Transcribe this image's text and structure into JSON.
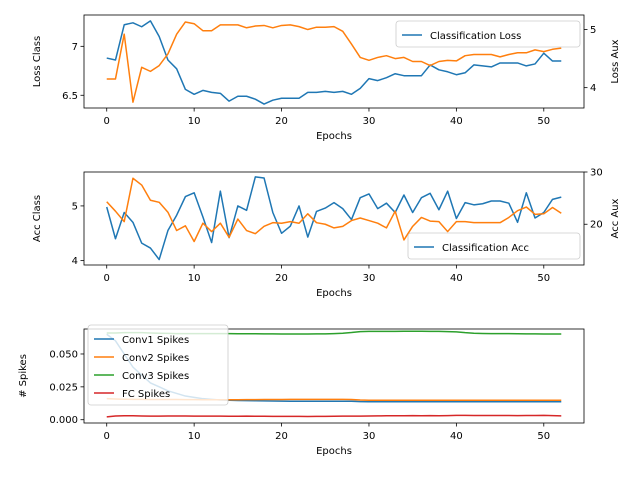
{
  "chart_data": [
    {
      "type": "line",
      "xlabel": "Epochs",
      "ylabel": "Loss Class",
      "ylabel_right": "Loss Aux",
      "xlim": [
        -2.6,
        54.6
      ],
      "ylim": [
        6.37,
        7.32
      ],
      "ylim_right": [
        3.65,
        5.25
      ],
      "xticks": [
        0,
        10,
        20,
        30,
        40,
        50
      ],
      "yticks": [
        6.5,
        7.0
      ],
      "yticks_right": [
        4,
        5
      ],
      "legend": "upper right",
      "series": [
        {
          "name": "Classification Loss",
          "axis": "left",
          "color": "#1f77b4",
          "x": [
            0,
            1,
            2,
            3,
            4,
            5,
            6,
            7,
            8,
            9,
            10,
            11,
            12,
            13,
            14,
            15,
            16,
            17,
            18,
            19,
            20,
            21,
            22,
            23,
            24,
            25,
            26,
            27,
            28,
            29,
            30,
            31,
            32,
            33,
            34,
            35,
            36,
            37,
            38,
            39,
            40,
            41,
            42,
            43,
            44,
            45,
            46,
            47,
            48,
            49,
            50,
            51,
            52
          ],
          "y": [
            6.88,
            6.86,
            7.22,
            7.24,
            7.2,
            7.26,
            7.1,
            6.86,
            6.77,
            6.56,
            6.51,
            6.55,
            6.53,
            6.52,
            6.44,
            6.49,
            6.49,
            6.46,
            6.41,
            6.45,
            6.47,
            6.47,
            6.47,
            6.53,
            6.53,
            6.54,
            6.53,
            6.54,
            6.51,
            6.57,
            6.67,
            6.65,
            6.68,
            6.72,
            6.7,
            6.7,
            6.7,
            6.81,
            6.76,
            6.74,
            6.71,
            6.73,
            6.81,
            6.8,
            6.79,
            6.83,
            6.83,
            6.83,
            6.8,
            6.82,
            6.93,
            6.85,
            6.85
          ]
        },
        {
          "axis": "right",
          "color": "#ff7f0e",
          "x": [
            0,
            1,
            2,
            3,
            4,
            5,
            6,
            7,
            8,
            9,
            10,
            11,
            12,
            13,
            14,
            15,
            16,
            17,
            18,
            19,
            20,
            21,
            22,
            23,
            24,
            25,
            26,
            27,
            28,
            29,
            30,
            31,
            32,
            33,
            34,
            35,
            36,
            37,
            38,
            39,
            40,
            41,
            42,
            43,
            44,
            45,
            46,
            47,
            48,
            49,
            50,
            51,
            52
          ],
          "y": [
            4.15,
            4.15,
            4.92,
            3.75,
            4.35,
            4.28,
            4.38,
            4.58,
            4.92,
            5.13,
            5.1,
            4.98,
            4.98,
            5.08,
            5.08,
            5.08,
            5.03,
            5.06,
            5.07,
            5.03,
            5.07,
            5.08,
            5.05,
            5.0,
            5.04,
            5.04,
            5.05,
            4.97,
            4.75,
            4.52,
            4.47,
            4.52,
            4.55,
            4.5,
            4.52,
            4.45,
            4.45,
            4.38,
            4.45,
            4.47,
            4.46,
            4.55,
            4.57,
            4.57,
            4.57,
            4.53,
            4.57,
            4.6,
            4.6,
            4.65,
            4.62,
            4.66,
            4.68
          ]
        }
      ]
    },
    {
      "type": "line",
      "xlabel": "Epochs",
      "ylabel": "Acc Class",
      "ylabel_right": "Acc Aux",
      "xlim": [
        -2.6,
        54.6
      ],
      "ylim": [
        3.92,
        5.62
      ],
      "ylim_right": [
        12.2,
        30
      ],
      "xticks": [
        0,
        10,
        20,
        30,
        40,
        50
      ],
      "yticks": [
        4,
        5
      ],
      "yticks_right": [
        20,
        30
      ],
      "legend": "lower right",
      "series": [
        {
          "name": "Classification Acc",
          "axis": "left",
          "color": "#1f77b4",
          "x": [
            0,
            1,
            2,
            3,
            4,
            5,
            6,
            7,
            8,
            9,
            10,
            11,
            12,
            13,
            14,
            15,
            16,
            17,
            18,
            19,
            20,
            21,
            22,
            23,
            24,
            25,
            26,
            27,
            28,
            29,
            30,
            31,
            32,
            33,
            34,
            35,
            36,
            37,
            38,
            39,
            40,
            41,
            42,
            43,
            44,
            45,
            46,
            47,
            48,
            49,
            50,
            51,
            52
          ],
          "y": [
            4.98,
            4.4,
            4.88,
            4.7,
            4.32,
            4.23,
            4.02,
            4.55,
            4.83,
            5.17,
            5.24,
            4.8,
            4.33,
            5.27,
            4.42,
            5.0,
            4.92,
            5.53,
            5.51,
            4.88,
            4.5,
            4.63,
            5.0,
            4.43,
            4.9,
            4.96,
            5.06,
            4.95,
            4.75,
            5.15,
            5.22,
            4.95,
            5.05,
            4.88,
            5.2,
            4.88,
            5.15,
            5.23,
            4.93,
            5.27,
            4.77,
            5.06,
            5.02,
            5.04,
            5.09,
            5.09,
            5.05,
            4.7,
            5.24,
            4.78,
            4.88,
            5.12,
            5.16
          ]
        },
        {
          "axis": "right",
          "color": "#ff7f0e",
          "x": [
            0,
            1,
            2,
            3,
            4,
            5,
            6,
            7,
            8,
            9,
            10,
            11,
            12,
            13,
            14,
            15,
            16,
            17,
            18,
            19,
            20,
            21,
            22,
            23,
            24,
            25,
            26,
            27,
            28,
            29,
            30,
            31,
            32,
            33,
            34,
            35,
            36,
            37,
            38,
            39,
            40,
            41,
            42,
            43,
            44,
            45,
            46,
            47,
            48,
            49,
            50,
            51,
            52
          ],
          "y": [
            24.3,
            22.5,
            20.5,
            28.8,
            27.5,
            24.6,
            24.2,
            22.3,
            18.8,
            19.7,
            16.7,
            20.2,
            18.6,
            20.2,
            17.5,
            21.0,
            18.8,
            18.2,
            19.6,
            20.3,
            20.2,
            20.5,
            20.2,
            22.0,
            20.3,
            20.0,
            19.3,
            19.6,
            20.7,
            21.2,
            20.7,
            20.2,
            19.3,
            22.5,
            17.0,
            19.6,
            21.3,
            20.6,
            20.5,
            18.6,
            20.5,
            20.5,
            20.3,
            20.3,
            20.3,
            20.3,
            21.3,
            22.6,
            23.3,
            21.9,
            22.0,
            23.2,
            22.1
          ]
        }
      ]
    },
    {
      "type": "line",
      "xlabel": "Epochs",
      "ylabel": "# Spikes",
      "xlim": [
        -2.6,
        54.6
      ],
      "ylim": [
        -0.0025,
        0.069
      ],
      "xticks": [
        0,
        10,
        20,
        30,
        40,
        50
      ],
      "yticks": [
        0.0,
        0.025,
        0.05
      ],
      "legend": "upper left",
      "series": [
        {
          "name": "Conv1 Spikes",
          "color": "#1f77b4",
          "x": [
            0,
            1,
            2,
            3,
            4,
            5,
            6,
            7,
            8,
            9,
            10,
            11,
            12,
            13,
            14,
            15,
            16,
            17,
            18,
            19,
            20,
            21,
            22,
            23,
            24,
            25,
            26,
            27,
            28,
            29,
            30,
            31,
            32,
            33,
            34,
            35,
            36,
            37,
            38,
            39,
            40,
            41,
            42,
            43,
            44,
            45,
            46,
            47,
            48,
            49,
            50,
            51,
            52
          ],
          "y": [
            0.065,
            0.06,
            0.05,
            0.04,
            0.034,
            0.028,
            0.025,
            0.022,
            0.02,
            0.018,
            0.017,
            0.016,
            0.0155,
            0.015,
            0.0148,
            0.0146,
            0.0145,
            0.0144,
            0.0143,
            0.0142,
            0.0141,
            0.014,
            0.014,
            0.014,
            0.014,
            0.014,
            0.014,
            0.014,
            0.014,
            0.0138,
            0.0137,
            0.0137,
            0.0137,
            0.0137,
            0.0137,
            0.0137,
            0.0137,
            0.0137,
            0.0137,
            0.0137,
            0.0137,
            0.0137,
            0.0137,
            0.0137,
            0.0137,
            0.0137,
            0.0137,
            0.0137,
            0.0137,
            0.0137,
            0.0137,
            0.0137,
            0.0137
          ]
        },
        {
          "name": "Conv2 Spikes",
          "color": "#ff7f0e",
          "x": [
            0,
            1,
            2,
            3,
            4,
            5,
            6,
            7,
            8,
            9,
            10,
            11,
            12,
            13,
            14,
            15,
            16,
            17,
            18,
            19,
            20,
            21,
            22,
            23,
            24,
            25,
            26,
            27,
            28,
            29,
            30,
            31,
            32,
            33,
            34,
            35,
            36,
            37,
            38,
            39,
            40,
            41,
            42,
            43,
            44,
            45,
            46,
            47,
            48,
            49,
            50,
            51,
            52
          ],
          "y": [
            0.016,
            0.0158,
            0.0156,
            0.0155,
            0.0155,
            0.0154,
            0.0154,
            0.0154,
            0.0154,
            0.0153,
            0.0153,
            0.0152,
            0.0152,
            0.0152,
            0.0152,
            0.0152,
            0.0153,
            0.0153,
            0.0154,
            0.0154,
            0.0154,
            0.0155,
            0.0155,
            0.0155,
            0.0155,
            0.0155,
            0.0155,
            0.0155,
            0.0154,
            0.015,
            0.0148,
            0.0148,
            0.0148,
            0.0148,
            0.0148,
            0.0148,
            0.0148,
            0.0148,
            0.0148,
            0.0148,
            0.0148,
            0.0148,
            0.0148,
            0.0148,
            0.0148,
            0.0148,
            0.0148,
            0.0148,
            0.0148,
            0.0148,
            0.0148,
            0.0148,
            0.0148
          ]
        },
        {
          "name": "Conv3 Spikes",
          "color": "#2ca02c",
          "x": [
            0,
            1,
            2,
            3,
            4,
            5,
            6,
            7,
            8,
            9,
            10,
            11,
            12,
            13,
            14,
            15,
            16,
            17,
            18,
            19,
            20,
            21,
            22,
            23,
            24,
            25,
            26,
            27,
            28,
            29,
            30,
            31,
            32,
            33,
            34,
            35,
            36,
            37,
            38,
            39,
            40,
            41,
            42,
            43,
            44,
            45,
            46,
            47,
            48,
            49,
            50,
            51,
            52
          ],
          "y": [
            0.066,
            0.066,
            0.0662,
            0.0662,
            0.0662,
            0.066,
            0.0658,
            0.0657,
            0.0655,
            0.0655,
            0.0655,
            0.0655,
            0.0655,
            0.0655,
            0.0655,
            0.0654,
            0.0654,
            0.0654,
            0.0653,
            0.0653,
            0.0652,
            0.0652,
            0.0652,
            0.0652,
            0.0653,
            0.0653,
            0.0655,
            0.0658,
            0.0663,
            0.067,
            0.0672,
            0.0672,
            0.0672,
            0.0672,
            0.0673,
            0.0673,
            0.0673,
            0.0672,
            0.0672,
            0.067,
            0.0668,
            0.0662,
            0.0658,
            0.0656,
            0.0655,
            0.0655,
            0.0655,
            0.0654,
            0.0653,
            0.0653,
            0.0652,
            0.0652,
            0.0652
          ]
        },
        {
          "name": "FC Spikes",
          "color": "#d62728",
          "x": [
            0,
            1,
            2,
            3,
            4,
            5,
            6,
            7,
            8,
            9,
            10,
            11,
            12,
            13,
            14,
            15,
            16,
            17,
            18,
            19,
            20,
            21,
            22,
            23,
            24,
            25,
            26,
            27,
            28,
            29,
            30,
            31,
            32,
            33,
            34,
            35,
            36,
            37,
            38,
            39,
            40,
            41,
            42,
            43,
            44,
            45,
            46,
            47,
            48,
            49,
            50,
            51,
            52
          ],
          "y": [
            0.0022,
            0.0028,
            0.003,
            0.003,
            0.0028,
            0.0027,
            0.0027,
            0.0028,
            0.0028,
            0.0028,
            0.0027,
            0.0027,
            0.0027,
            0.0027,
            0.0026,
            0.0026,
            0.0027,
            0.0026,
            0.0026,
            0.0025,
            0.0025,
            0.0025,
            0.0025,
            0.0024,
            0.0025,
            0.0025,
            0.0026,
            0.0027,
            0.0027,
            0.0027,
            0.0028,
            0.0029,
            0.003,
            0.003,
            0.003,
            0.0031,
            0.003,
            0.0031,
            0.003,
            0.0031,
            0.0033,
            0.0033,
            0.0032,
            0.0032,
            0.0032,
            0.0032,
            0.0032,
            0.0031,
            0.0032,
            0.0032,
            0.0033,
            0.0031,
            0.0029
          ]
        }
      ]
    }
  ]
}
